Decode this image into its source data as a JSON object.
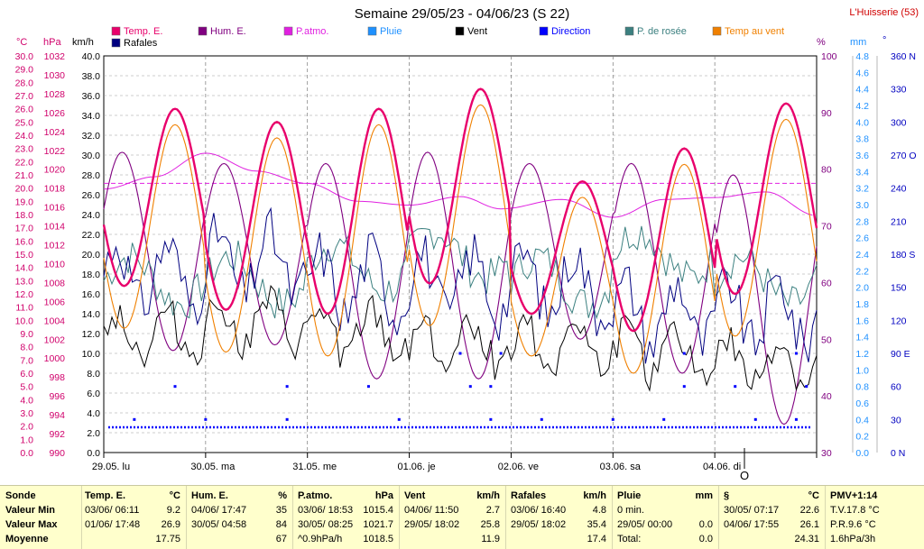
{
  "title": "Semaine 29/05/23 - 04/06/23 (S 22)",
  "station": "L'Huisserie (53)",
  "colors": {
    "temp": "#e8006b",
    "hum": "#800080",
    "patmo": "#e020e0",
    "pluie": "#1e90ff",
    "vent": "#000000",
    "direction": "#0000ff",
    "rosee": "#3c8080",
    "tempvent": "#f08000",
    "rafales": "#000080",
    "axis_temp": "#d0006b",
    "axis_hum": "#800080",
    "axis_mm": "#1e90ff",
    "axis_dir": "#0000c0"
  },
  "legend": [
    {
      "label": "Temp. E.",
      "color": "#e8006b"
    },
    {
      "label": "Hum. E.",
      "color": "#800080"
    },
    {
      "label": "P.atmo.",
      "color": "#e020e0"
    },
    {
      "label": "Pluie",
      "color": "#1e90ff"
    },
    {
      "label": "Vent",
      "color": "#000000"
    },
    {
      "label": "Direction",
      "color": "#0000ff"
    },
    {
      "label": "P. de rosée",
      "color": "#3c8080"
    },
    {
      "label": "Temp au vent",
      "color": "#f08000"
    },
    {
      "label": "Rafales",
      "color": "#000080"
    }
  ],
  "axis_units": {
    "temp": "°C",
    "pressure": "hPa",
    "wind": "km/h",
    "hum": "%",
    "rain": "mm",
    "dir": "°"
  },
  "marker": "O",
  "chart_data": {
    "type": "line",
    "x_labels": [
      "29.05. lu",
      "30.05. ma",
      "31.05. me",
      "01.06. je",
      "02.06. ve",
      "03.06. sa",
      "04.06. di"
    ],
    "x_range_days": [
      0,
      7
    ],
    "axes": {
      "temp_ticks": [
        "30.0",
        "29.0",
        "28.0",
        "27.0",
        "26.0",
        "25.0",
        "24.0",
        "23.0",
        "22.0",
        "21.0",
        "20.0",
        "19.0",
        "18.0",
        "17.0",
        "16.0",
        "15.0",
        "14.0",
        "13.0",
        "12.0",
        "11.0",
        "10.0",
        "9.0",
        "8.0",
        "7.0",
        "6.0",
        "5.0",
        "4.0",
        "3.0",
        "2.0",
        "1.0",
        "0.0"
      ],
      "pressure_ticks": [
        "1032",
        "1030",
        "1028",
        "1026",
        "1024",
        "1022",
        "1020",
        "1018",
        "1016",
        "1014",
        "1012",
        "1010",
        "1008",
        "1006",
        "1004",
        "1002",
        "1000",
        "998",
        "996",
        "994",
        "992",
        "990"
      ],
      "wind_ticks": [
        "40.0",
        "38.0",
        "36.0",
        "34.0",
        "32.0",
        "30.0",
        "28.0",
        "26.0",
        "24.0",
        "22.0",
        "20.0",
        "18.0",
        "16.0",
        "14.0",
        "12.0",
        "10.0",
        "8.0",
        "6.0",
        "4.0",
        "2.0",
        "0.0"
      ],
      "hum_ticks": [
        "100",
        "90",
        "80",
        "70",
        "60",
        "50",
        "40",
        "30"
      ],
      "rain_ticks": [
        "4.8",
        "4.6",
        "4.4",
        "4.2",
        "4.0",
        "3.8",
        "3.6",
        "3.4",
        "3.2",
        "3.0",
        "2.8",
        "2.6",
        "2.4",
        "2.2",
        "2.0",
        "1.8",
        "1.6",
        "1.4",
        "1.2",
        "1.0",
        "0.8",
        "0.6",
        "0.4",
        "0.2",
        "0.0"
      ],
      "dir_ticks": [
        "360 N",
        "330",
        "300",
        "270 O",
        "240",
        "210",
        "180 S",
        "150",
        "120",
        "90 E",
        "60",
        "30",
        "0 N"
      ],
      "temp_range": [
        0,
        30
      ],
      "pressure_range": [
        990,
        1032
      ],
      "wind_range": [
        0,
        40
      ],
      "hum_range": [
        30,
        100
      ],
      "rain_range": [
        0,
        5
      ],
      "dir_range": [
        0,
        360
      ]
    },
    "grid": true,
    "series": {
      "temp_max": [
        26.0,
        25.0,
        26.0,
        27.5,
        20.5,
        23.0,
        26.4
      ],
      "temp_min": [
        12.6,
        10.8,
        10.5,
        12.8,
        10.5,
        9.2,
        12.0
      ],
      "hum_max": [
        83,
        81,
        81,
        83,
        81,
        81,
        79
      ],
      "hum_min": [
        48,
        49,
        43,
        43,
        50,
        44,
        35
      ],
      "pressure": [
        1017.9,
        1019.2,
        1021.7,
        1019.8,
        1018.5,
        1016.6,
        1016.2,
        1017.1,
        1015.8,
        1016.8,
        1014.9,
        1016.8,
        1017.0,
        1017.6,
        1015.1
      ],
      "pressure_times": [
        0.0,
        0.5,
        1.0,
        1.5,
        2.0,
        2.5,
        3.0,
        3.5,
        3.9,
        4.5,
        5.0,
        5.5,
        6.0,
        6.5,
        7.0
      ],
      "pressure_mean_line": 1018.5,
      "wind_base": [
        12,
        13,
        12,
        11,
        11,
        10,
        9
      ],
      "gust_base": [
        18,
        19,
        17,
        17,
        17,
        14,
        14
      ],
      "rosee_base": [
        13,
        13,
        14,
        15,
        13,
        15,
        13
      ],
      "dir_points": [
        [
          0.3,
          30
        ],
        [
          1.0,
          30
        ],
        [
          1.8,
          30
        ],
        [
          2.9,
          30
        ],
        [
          3.8,
          30
        ],
        [
          4.3,
          30
        ],
        [
          5.0,
          30
        ],
        [
          5.5,
          30
        ],
        [
          6.4,
          30
        ],
        [
          6.8,
          30
        ],
        [
          0.7,
          60
        ],
        [
          1.8,
          60
        ],
        [
          2.6,
          60
        ],
        [
          3.6,
          60
        ],
        [
          3.8,
          60
        ],
        [
          5.7,
          60
        ],
        [
          6.2,
          60
        ],
        [
          6.9,
          60
        ],
        [
          3.5,
          90
        ],
        [
          3.9,
          90
        ],
        [
          5.7,
          90
        ],
        [
          6.8,
          90
        ]
      ]
    }
  },
  "stats": {
    "sonde": {
      "header": "Sonde",
      "rows": [
        "Valeur Min",
        "Valeur Max",
        "Moyenne"
      ]
    },
    "temp": {
      "header": "Temp. E.",
      "unit": "°C",
      "rows": [
        [
          "03/06/ 06:11",
          "9.2"
        ],
        [
          "01/06/ 17:48",
          "26.9"
        ],
        [
          "",
          "17.75"
        ]
      ]
    },
    "hum": {
      "header": "Hum. E.",
      "unit": "%",
      "rows": [
        [
          "04/06/ 17:47",
          "35"
        ],
        [
          "30/05/ 04:58",
          "84"
        ],
        [
          "",
          "67"
        ]
      ]
    },
    "patmo": {
      "header": "P.atmo.",
      "unit": "hPa",
      "rows": [
        [
          "03/06/ 18:53",
          "1015.4"
        ],
        [
          "30/05/ 08:25",
          "1021.7"
        ],
        [
          "^0.9hPa/h",
          "1018.5"
        ]
      ]
    },
    "vent": {
      "header": "Vent",
      "unit": "km/h",
      "rows": [
        [
          "04/06/ 11:50",
          "2.7"
        ],
        [
          "29/05/ 18:02",
          "25.8"
        ],
        [
          "",
          "11.9"
        ]
      ]
    },
    "rafales": {
      "header": "Rafales",
      "unit": "km/h",
      "rows": [
        [
          "03/06/ 16:40",
          "4.8"
        ],
        [
          "29/05/ 18:02",
          "35.4"
        ],
        [
          "",
          "17.4"
        ]
      ]
    },
    "pluie": {
      "header": "Pluie",
      "unit": "mm",
      "rows": [
        [
          "0 min.",
          ""
        ],
        [
          "29/05/ 00:00",
          "0.0"
        ],
        [
          "Total:",
          "0.0"
        ]
      ]
    },
    "tvent": {
      "header": "§",
      "unit": "°C",
      "rows": [
        [
          "30/05/ 07:17",
          "22.6"
        ],
        [
          "04/06/ 17:55",
          "26.1"
        ],
        [
          "",
          "24.31"
        ]
      ]
    },
    "pmv": {
      "header": "PMV+1:14",
      "rows": [
        "T.V.17.8 °C",
        "P.R.9.6 °C",
        "1.6hPa/3h"
      ]
    }
  }
}
